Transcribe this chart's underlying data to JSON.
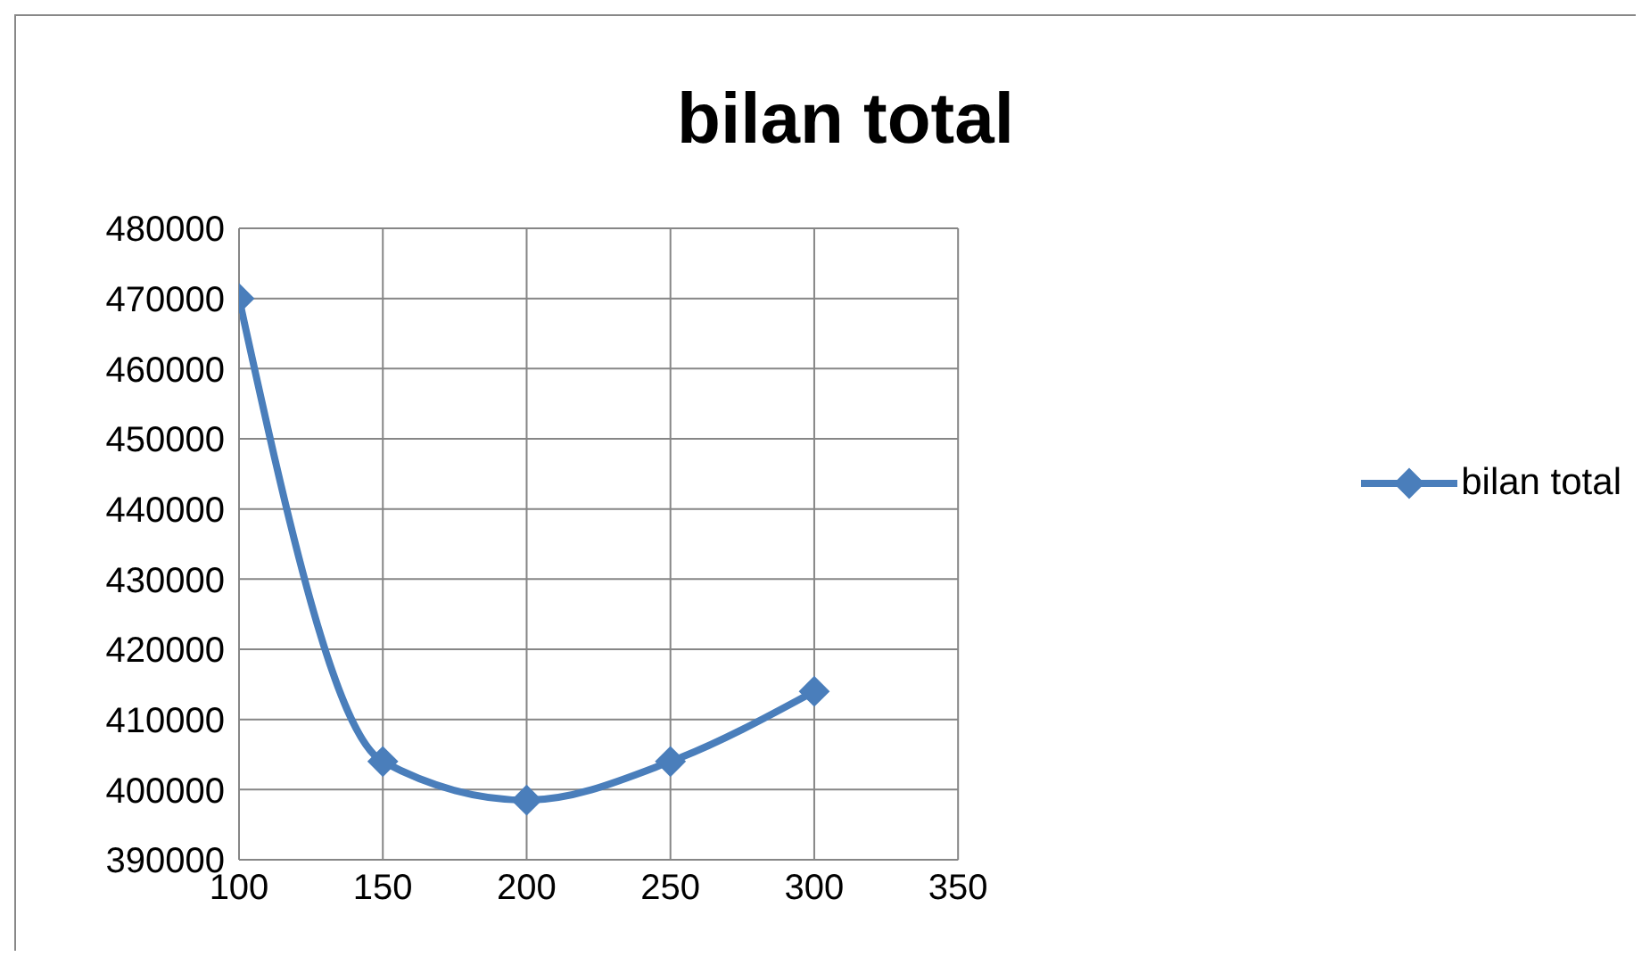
{
  "chart_data": {
    "type": "line",
    "title": "bilan total",
    "x": [
      100,
      150,
      200,
      250,
      300
    ],
    "series": [
      {
        "name": "bilan total",
        "color": "#4a7ebb",
        "values": [
          470000,
          404000,
          398500,
          404000,
          414000
        ]
      }
    ],
    "xlim": [
      100,
      350
    ],
    "xticks": [
      100,
      150,
      200,
      250,
      300,
      350
    ],
    "ylim": [
      390000,
      480000
    ],
    "yticks": [
      390000,
      400000,
      410000,
      420000,
      430000,
      440000,
      450000,
      460000,
      470000,
      480000
    ],
    "grid": true,
    "legend": "right",
    "marker": "diamond",
    "line_style": "solid"
  }
}
